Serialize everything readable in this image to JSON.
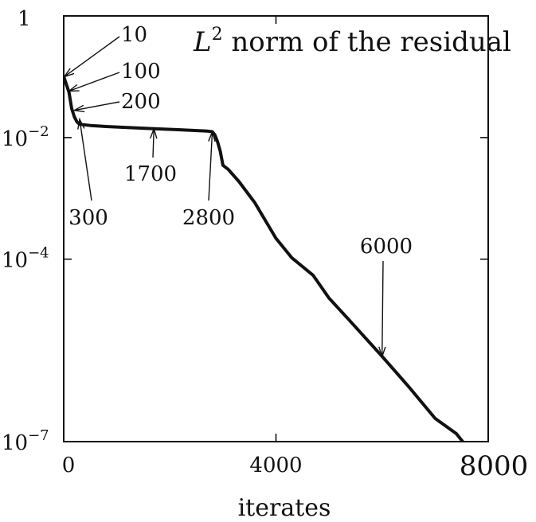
{
  "chart_data": {
    "type": "line",
    "title": "L",
    "title_superscript": "2",
    "title_rest": " norm of the residual",
    "xlabel": "iterates",
    "ylabel": "",
    "y_scale": "log",
    "xlim": [
      0,
      8000
    ],
    "ylim": [
      1e-07,
      1
    ],
    "x_ticks": [
      {
        "value": 0,
        "label": "0"
      },
      {
        "value": 4000,
        "label": "4000"
      },
      {
        "value": 8000,
        "label": "8000"
      }
    ],
    "y_ticks": [
      {
        "value": 1,
        "base": "1",
        "exp": ""
      },
      {
        "value": 0.01,
        "base": "10",
        "exp": "−2"
      },
      {
        "value": 0.0001,
        "base": "10",
        "exp": "−4"
      },
      {
        "value": 1e-07,
        "base": "10",
        "exp": "−7"
      }
    ],
    "grid": false,
    "legend": "none",
    "series": [
      {
        "x": [
          0,
          10,
          50,
          100,
          150,
          200,
          250,
          300,
          500,
          800,
          1200,
          1700,
          2200,
          2700,
          2800,
          2850,
          2900,
          2950,
          3000,
          3100,
          3300,
          3600,
          4000,
          4300,
          4700,
          5000,
          5400,
          6000,
          6500,
          7000,
          7400,
          7520
        ],
        "y": [
          0.1,
          0.095,
          0.075,
          0.055,
          0.03,
          0.022,
          0.018,
          0.0165,
          0.0158,
          0.0152,
          0.0146,
          0.014,
          0.0134,
          0.0128,
          0.0125,
          0.011,
          0.0085,
          0.006,
          0.0035,
          0.003,
          0.0019,
          0.00085,
          0.00022,
          0.000105,
          5.45e-05,
          2.29e-05,
          9.55e-06,
          2.52e-06,
          8.01e-07,
          2.4e-07,
          1.35e-07,
          1e-07
        ]
      }
    ],
    "annotations": [
      {
        "label": "10",
        "x": 10,
        "y": 0.1
      },
      {
        "label": "100",
        "x": 100,
        "y": 0.058
      },
      {
        "label": "200",
        "x": 200,
        "y": 0.028
      },
      {
        "label": "300",
        "x": 300,
        "y": 0.02
      },
      {
        "label": "1700",
        "x": 1700,
        "y": 0.014
      },
      {
        "label": "2800",
        "x": 2800,
        "y": 0.0125
      },
      {
        "label": "6000",
        "x": 6000,
        "y": 2.5e-06
      }
    ]
  }
}
